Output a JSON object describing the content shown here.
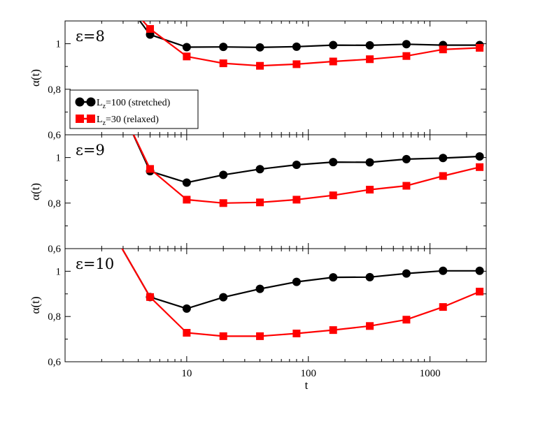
{
  "chart_data": {
    "type": "line",
    "xscale": "log",
    "xlim": [
      1,
      2900
    ],
    "x_ticks": [
      {
        "value": 10,
        "label": "10"
      },
      {
        "value": 100,
        "label": "100"
      },
      {
        "value": 1000,
        "label": "1000"
      }
    ],
    "xlabel": "t",
    "ylabel": "α(t)",
    "legend": {
      "placement": "left",
      "panel": 0,
      "entries": [
        {
          "name_main": "L",
          "name_sub": "z",
          "name_rest": "=100 (stretched)",
          "color": "#000000",
          "marker": "circle"
        },
        {
          "name_main": "L",
          "name_sub": "z",
          "name_rest": "=30 (relaxed)",
          "color": "#ff0000",
          "marker": "square"
        }
      ]
    },
    "panels": [
      {
        "label": "ε=8",
        "ylim": [
          0.6,
          1.1
        ],
        "y_ticks": [
          {
            "value": 0.6,
            "label": "0,6"
          },
          {
            "value": 0.8,
            "label": "0,8"
          },
          {
            "value": 1.0,
            "label": "1"
          }
        ],
        "series": [
          {
            "name": "Lz=100 (stretched)",
            "color": "#000000",
            "marker": "circle",
            "x": [
              5,
              10,
              20,
              40,
              80,
              160,
              320,
              640,
              1280,
              2560
            ],
            "y": [
              1.04,
              0.985,
              0.986,
              0.984,
              0.987,
              0.994,
              0.993,
              0.998,
              0.994,
              0.994
            ],
            "lead_in": [
              3.5,
              1.15
            ]
          },
          {
            "name": "Lz=30 (relaxed)",
            "color": "#ff0000",
            "marker": "square",
            "x": [
              5,
              10,
              20,
              40,
              80,
              160,
              320,
              640,
              1280,
              2560
            ],
            "y": [
              1.065,
              0.944,
              0.914,
              0.903,
              0.91,
              0.922,
              0.932,
              0.946,
              0.975,
              0.982
            ],
            "lead_in": [
              3.6,
              1.15
            ]
          }
        ]
      },
      {
        "label": "ε=9",
        "ylim": [
          0.6,
          1.1
        ],
        "y_ticks": [
          {
            "value": 0.6,
            "label": "0,6"
          },
          {
            "value": 0.8,
            "label": "0,8"
          },
          {
            "value": 1.0,
            "label": "1"
          }
        ],
        "series": [
          {
            "name": "Lz=100 (stretched)",
            "color": "#000000",
            "marker": "circle",
            "x": [
              5,
              10,
              20,
              40,
              80,
              160,
              320,
              640,
              1280,
              2560
            ],
            "y": [
              0.94,
              0.89,
              0.924,
              0.949,
              0.968,
              0.98,
              0.979,
              0.993,
              0.998,
              1.005
            ],
            "lead_in": [
              3.3,
              1.15
            ]
          },
          {
            "name": "Lz=30 (relaxed)",
            "color": "#ff0000",
            "marker": "square",
            "x": [
              5,
              10,
              20,
              40,
              80,
              160,
              320,
              640,
              1280,
              2560
            ],
            "y": [
              0.95,
              0.815,
              0.8,
              0.803,
              0.815,
              0.834,
              0.859,
              0.876,
              0.919,
              0.958
            ],
            "lead_in": [
              3.3,
              1.15
            ]
          }
        ]
      },
      {
        "label": "ε=10",
        "ylim": [
          0.6,
          1.1
        ],
        "y_ticks": [
          {
            "value": 0.6,
            "label": "0,6"
          },
          {
            "value": 0.8,
            "label": "0,8"
          },
          {
            "value": 1.0,
            "label": "1"
          }
        ],
        "series": [
          {
            "name": "Lz=100 (stretched)",
            "color": "#000000",
            "marker": "circle",
            "x": [
              5,
              10,
              20,
              40,
              80,
              160,
              320,
              640,
              1280,
              2560
            ],
            "y": [
              0.886,
              0.835,
              0.885,
              0.922,
              0.953,
              0.973,
              0.974,
              0.99,
              1.002,
              1.002
            ],
            "lead_in": [
              2.6,
              1.15
            ]
          },
          {
            "name": "Lz=30 (relaxed)",
            "color": "#ff0000",
            "marker": "square",
            "x": [
              5,
              10,
              20,
              40,
              80,
              160,
              320,
              640,
              1280,
              2560
            ],
            "y": [
              0.886,
              0.728,
              0.713,
              0.713,
              0.725,
              0.74,
              0.758,
              0.786,
              0.842,
              0.91
            ],
            "lead_in": [
              2.6,
              1.15
            ]
          }
        ]
      }
    ]
  }
}
